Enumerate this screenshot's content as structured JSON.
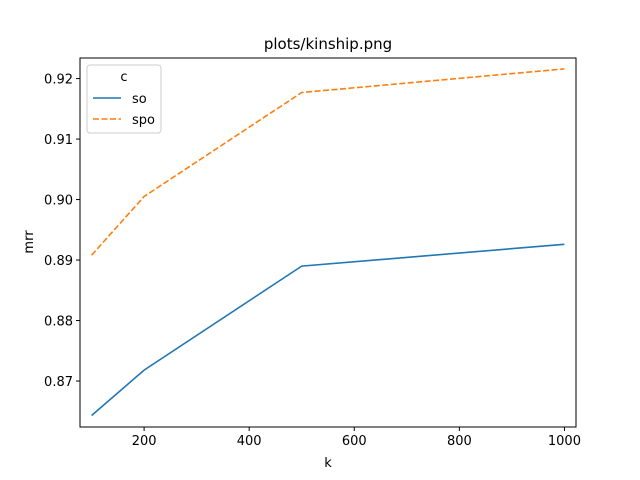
{
  "chart_data": {
    "type": "line",
    "title": "plots/kinship.png",
    "xlabel": "k",
    "ylabel": "mrr",
    "xlim": [
      78,
      1022
    ],
    "ylim": [
      0.8624,
      0.9234
    ],
    "xticks": [
      200,
      400,
      600,
      800,
      1000
    ],
    "yticks": [
      0.87,
      0.88,
      0.89,
      0.9,
      0.91,
      0.92
    ],
    "ytick_labels": [
      "0.87",
      "0.88",
      "0.89",
      "0.90",
      "0.91",
      "0.92"
    ],
    "grid": false,
    "legend": {
      "title": "c",
      "placement": "top-left"
    },
    "series": [
      {
        "name": "so",
        "color": "#1f77b4",
        "dash": "solid",
        "x": [
          100,
          200,
          500,
          1000
        ],
        "y": [
          0.8643,
          0.8718,
          0.889,
          0.8926
        ]
      },
      {
        "name": "spo",
        "color": "#ff7f0e",
        "dash": "dashed",
        "x": [
          100,
          200,
          500,
          1000
        ],
        "y": [
          0.8908,
          0.9005,
          0.9177,
          0.9216
        ]
      }
    ]
  }
}
